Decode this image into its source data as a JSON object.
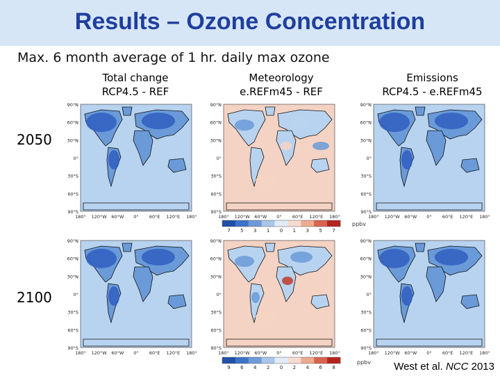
{
  "slide": {
    "title": "Results – Ozone Concentration",
    "subtitle": "Max. 6 month average of 1 hr. daily max ozone",
    "citation_authors": "West et al.",
    "citation_journal": "NCC",
    "citation_year": "2013"
  },
  "columns": [
    {
      "line1": "Total change",
      "line2": "RCP4.5 - REF"
    },
    {
      "line1": "Meteorology",
      "line2": "e.REFm45 - REF"
    },
    {
      "line1": "Emissions",
      "line2": "RCP4.5 - e.REFm45"
    }
  ],
  "rows": [
    "2050",
    "2100"
  ],
  "map_axes": {
    "lat_labels": [
      "90°N",
      "60°N",
      "30°N",
      "0°",
      "30°S",
      "60°S",
      "90°S"
    ],
    "lon_labels": [
      "180°",
      "120°W",
      "60°W",
      "0°",
      "60°E",
      "120°E",
      "180°"
    ]
  },
  "colorbars": {
    "unit": "ppbv",
    "row_2050": [
      "7",
      "5",
      "3",
      "1",
      "0",
      "1",
      "3",
      "5",
      "7"
    ],
    "row_2100": [
      "9",
      "6",
      "4",
      "2",
      "0",
      "2",
      "4",
      "6",
      "8"
    ]
  },
  "colors": {
    "title": "#1f3f9e",
    "title_bar": "#d6e6f7",
    "strong_decrease": "#2f5fc0",
    "moderate_decrease": "#6a9ad8",
    "slight_decrease": "#b8d3ef",
    "slight_increase": "#f4d3c4",
    "strong_increase": "#c0392b"
  },
  "scenes": [
    {
      "row": "2050",
      "column": "Total change",
      "tone": "strong_decrease"
    },
    {
      "row": "2050",
      "column": "Meteorology",
      "tone": "mixed_small"
    },
    {
      "row": "2050",
      "column": "Emissions",
      "tone": "strong_decrease"
    },
    {
      "row": "2100",
      "column": "Total change",
      "tone": "strong_decrease"
    },
    {
      "row": "2100",
      "column": "Meteorology",
      "tone": "mixed_with_african_increase"
    },
    {
      "row": "2100",
      "column": "Emissions",
      "tone": "strong_decrease"
    }
  ]
}
